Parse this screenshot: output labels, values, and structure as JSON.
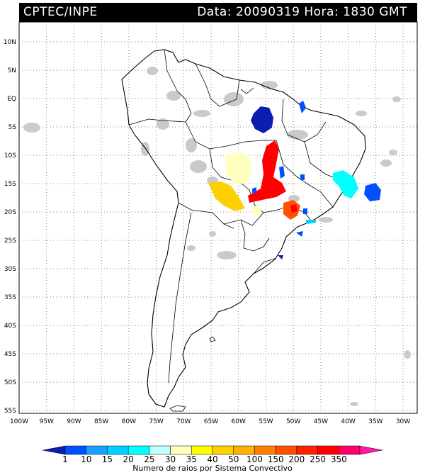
{
  "header": {
    "source": "CPTEC/INPE",
    "info": "Data: 20090319 Hora: 1830 GMT"
  },
  "axes": {
    "lat_labels": [
      "10N",
      "5N",
      "EQ",
      "5S",
      "10S",
      "15S",
      "20S",
      "25S",
      "30S",
      "35S",
      "40S",
      "45S",
      "50S",
      "55S"
    ],
    "lon_labels": [
      "100W",
      "95W",
      "90W",
      "85W",
      "80W",
      "75W",
      "70W",
      "65W",
      "60W",
      "55W",
      "50W",
      "45W",
      "40W",
      "35W",
      "30W"
    ],
    "lat_range": [
      -55,
      10
    ],
    "lon_range": [
      -100,
      -30
    ]
  },
  "legend": {
    "caption": "Numero de raios por Sistema Convectivo",
    "ticks": [
      "1",
      "10",
      "15",
      "20",
      "25",
      "30",
      "35",
      "40",
      "50",
      "100",
      "150",
      "200",
      "250",
      "350"
    ],
    "colors": [
      "#0a1fb0",
      "#0050ff",
      "#1aa0ff",
      "#00d0ff",
      "#00ffff",
      "#bfffff",
      "#ffffc0",
      "#ffff00",
      "#ffd000",
      "#ffb000",
      "#ff8000",
      "#ff5000",
      "#ff2000",
      "#ff0000",
      "#ff0066",
      "#ff1aa0"
    ]
  },
  "clusters": [
    {
      "name": "central-amazon",
      "color": "#0a1fb0",
      "lat": -5.0,
      "lon": -54.5
    },
    {
      "name": "mato-grosso-north",
      "color": "#ff0000",
      "lat": -11.0,
      "lon": -52.5
    },
    {
      "name": "mato-grosso-south",
      "color": "#ff0000",
      "lat": -17.0,
      "lon": -55.0
    },
    {
      "name": "bolivia-yellow",
      "color": "#ffd000",
      "lat": -18.0,
      "lon": -62.5
    },
    {
      "name": "pantanal-cream",
      "color": "#ffffc0",
      "lat": -14.5,
      "lon": -60.5
    },
    {
      "name": "sao-paulo-orange",
      "color": "#ff5000",
      "lat": -20.0,
      "lon": -48.5
    },
    {
      "name": "atlantic-cyan",
      "color": "#00ffff",
      "lat": -15.5,
      "lon": -38.5
    },
    {
      "name": "atlantic-blue",
      "color": "#0a1fb0",
      "lat": -17.5,
      "lon": -34.5
    }
  ]
}
